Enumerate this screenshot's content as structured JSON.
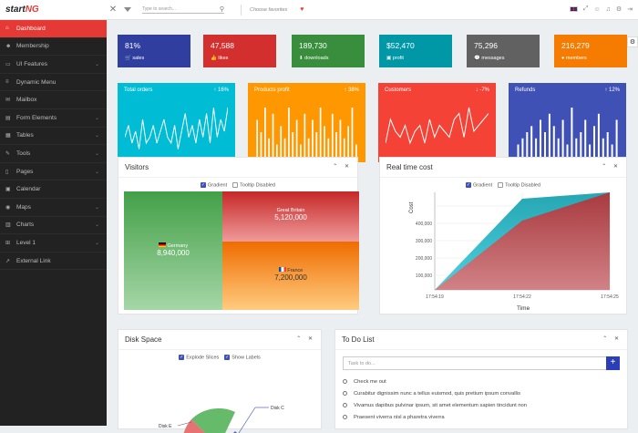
{
  "topbar": {
    "logo_main": "start",
    "logo_accent": "NG",
    "search_placeholder": "Type to search...",
    "favorites": "Choose favorites"
  },
  "sidebar": {
    "items": [
      {
        "label": "Dashboard",
        "icon": "home-icon",
        "chev": false,
        "active": true
      },
      {
        "label": "Membership",
        "icon": "users-icon",
        "chev": false
      },
      {
        "label": "UI Features",
        "icon": "monitor-icon",
        "chev": true
      },
      {
        "label": "Dynamic Menu",
        "icon": "menu-icon",
        "chev": false
      },
      {
        "label": "Mailbox",
        "icon": "envelope-icon",
        "chev": false
      },
      {
        "label": "Form Elements",
        "icon": "form-icon",
        "chev": true
      },
      {
        "label": "Tables",
        "icon": "table-icon",
        "chev": true
      },
      {
        "label": "Tools",
        "icon": "wrench-icon",
        "chev": true
      },
      {
        "label": "Pages",
        "icon": "file-icon",
        "chev": true
      },
      {
        "label": "Calendar",
        "icon": "calendar-icon",
        "chev": false
      },
      {
        "label": "Maps",
        "icon": "globe-icon",
        "chev": true
      },
      {
        "label": "Charts",
        "icon": "chart-icon",
        "chev": true
      },
      {
        "label": "Level 1",
        "icon": "sitemap-icon",
        "chev": true
      },
      {
        "label": "External Link",
        "icon": "external-link-icon",
        "chev": false
      }
    ]
  },
  "stats": [
    {
      "value": "81%",
      "label": "sales",
      "icon": "cart-icon",
      "glyph": "🛒",
      "color": "#303f9f"
    },
    {
      "value": "47,588",
      "label": "likes",
      "icon": "thumb-icon",
      "glyph": "👍",
      "color": "#d32f2f"
    },
    {
      "value": "189,730",
      "label": "downloads",
      "icon": "download-icon",
      "glyph": "⬇",
      "color": "#388e3c"
    },
    {
      "value": "$52,470",
      "label": "profit",
      "icon": "money-icon",
      "glyph": "▣",
      "color": "#0097a7"
    },
    {
      "value": "75,296",
      "label": "messages",
      "icon": "comment-icon",
      "glyph": "💬",
      "color": "#616161"
    },
    {
      "value": "216,279",
      "label": "members",
      "icon": "user-icon",
      "glyph": "●",
      "color": "#f57c00"
    }
  ],
  "big_cards": [
    {
      "title": "Total orders",
      "pct": "16%",
      "arrow": "↑",
      "color": "#00bcd4",
      "kind": "line",
      "values": [
        3,
        5,
        2,
        4,
        1,
        6,
        2,
        3,
        5,
        2,
        4,
        6,
        3,
        2,
        5,
        1,
        4,
        7,
        3,
        5,
        2,
        6,
        3,
        7,
        2,
        8,
        3,
        6,
        4,
        8
      ]
    },
    {
      "title": "Products profit",
      "pct": "38%",
      "arrow": "↑",
      "color": "#ff9800",
      "kind": "bar",
      "values": [
        6,
        4,
        8,
        3,
        7,
        2,
        5,
        3,
        8,
        4,
        6,
        2,
        7,
        3,
        6,
        4,
        8,
        5,
        3,
        7,
        4,
        6,
        3,
        5,
        8,
        2
      ]
    },
    {
      "title": "Customers",
      "pct": "-7%",
      "arrow": "↓",
      "color": "#f44336",
      "kind": "line",
      "values": [
        2,
        6,
        4,
        3,
        5,
        2,
        4,
        5,
        2,
        6,
        3,
        5,
        4,
        3,
        6,
        7,
        3,
        8,
        4,
        5,
        6,
        7
      ]
    },
    {
      "title": "Refunds",
      "pct": "12%",
      "arrow": "↑",
      "color": "#3f51b5",
      "kind": "bar",
      "values": [
        2,
        3,
        4,
        5,
        3,
        6,
        4,
        7,
        5,
        3,
        6,
        2,
        8,
        3,
        4,
        6,
        2,
        5,
        7,
        3,
        4,
        2,
        6
      ]
    }
  ],
  "visitors": {
    "title": "Visitors",
    "opt1": "Gradient",
    "opt2": "Tooltip Disabled",
    "items": [
      {
        "name": "Germany",
        "value": "8,940,000"
      },
      {
        "name": "Great Britain",
        "value": "5,120,000"
      },
      {
        "name": "France",
        "value": "7,200,000"
      }
    ]
  },
  "realtime": {
    "title": "Real time cost",
    "opt1": "Gradient",
    "opt2": "Tooltip Disabled",
    "ylabel": "Cost",
    "xlabel": "Time",
    "yticks": [
      "100,000",
      "200,000",
      "300,000",
      "400,000"
    ],
    "xticks": [
      "17:54:19",
      "17:54:22",
      "17:54:25"
    ]
  },
  "disk": {
    "title": "Disk Space",
    "opt1": "Explode Slices",
    "opt2": "Show Labels",
    "labels": [
      "Disk E",
      "Disk C"
    ]
  },
  "todo": {
    "title": "To Do List",
    "placeholder": "Task to do...",
    "add": "+",
    "items": [
      "Check me out",
      "Curabitur dignissim nunc a tellus euismod, quis pretium ipsum convallis",
      "Vivamus dapibus pulvinar ipsum, sit amet elementum sapien tincidunt non",
      "Praesent viverra nisl a pharetra viverra"
    ]
  },
  "ctl": "⌃ ✕"
}
